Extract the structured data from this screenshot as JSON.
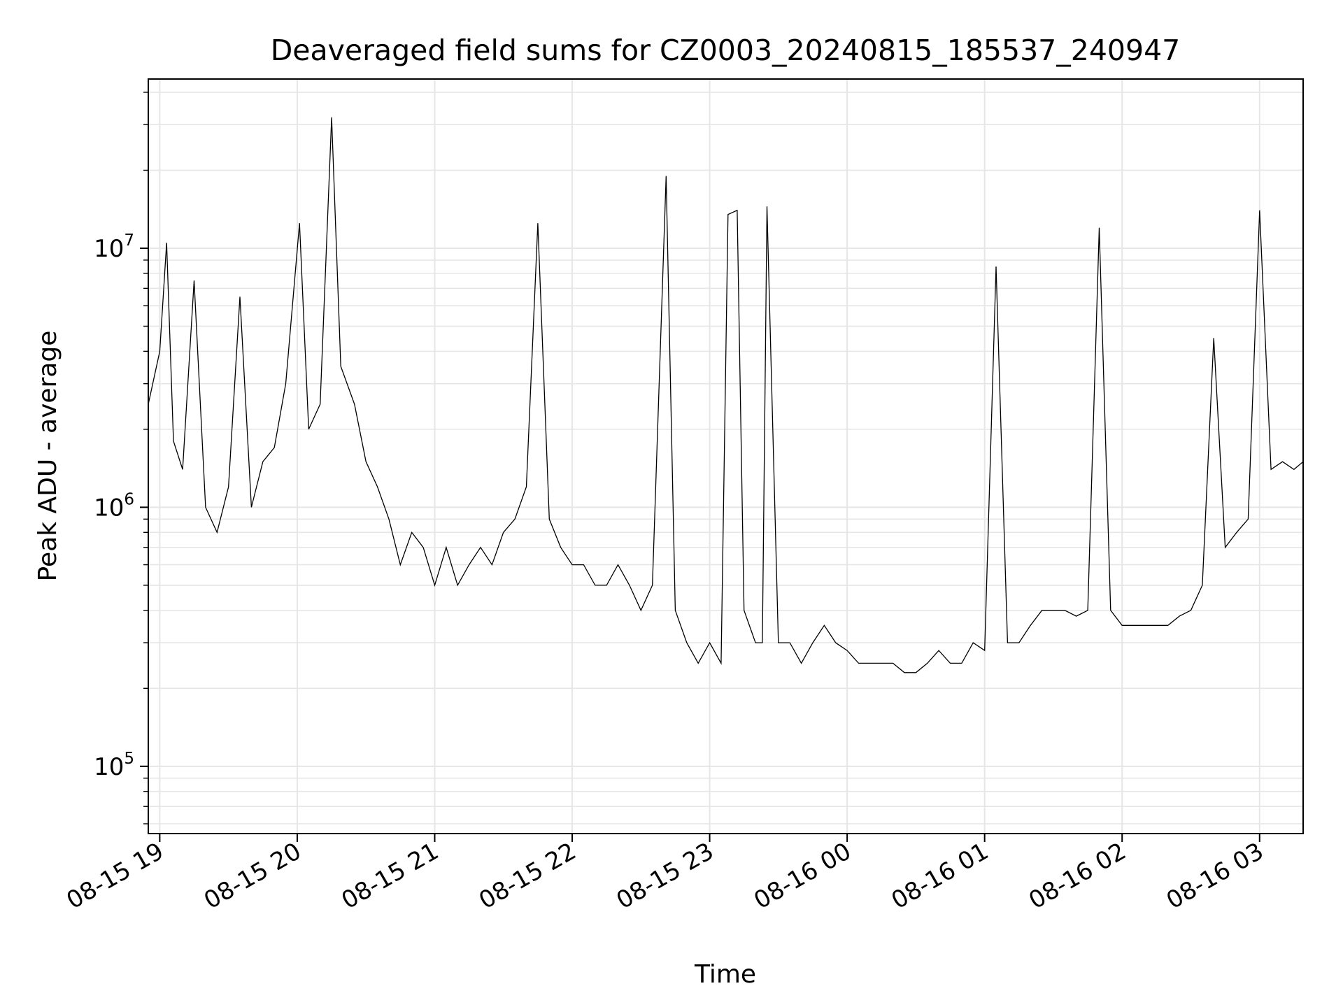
{
  "chart_data": {
    "type": "line",
    "title": "Deaveraged field sums for CZ0003_20240815_185537_240947",
    "xlabel": "Time",
    "ylabel": "Peak ADU - average",
    "y_scale": "log",
    "ylim": [
      55000,
      45000000
    ],
    "xlim": [
      "2024-08-15 18:55",
      "2024-08-16 03:19"
    ],
    "grid": true,
    "line_color": "#000000",
    "grid_color": "#e6e6e6",
    "x_ticks": [
      {
        "value": "2024-08-15 19:00",
        "label": "08-15 19"
      },
      {
        "value": "2024-08-15 20:00",
        "label": "08-15 20"
      },
      {
        "value": "2024-08-15 21:00",
        "label": "08-15 21"
      },
      {
        "value": "2024-08-15 22:00",
        "label": "08-15 22"
      },
      {
        "value": "2024-08-15 23:00",
        "label": "08-15 23"
      },
      {
        "value": "2024-08-16 00:00",
        "label": "08-16 00"
      },
      {
        "value": "2024-08-16 01:00",
        "label": "08-16 01"
      },
      {
        "value": "2024-08-16 02:00",
        "label": "08-16 02"
      },
      {
        "value": "2024-08-16 03:00",
        "label": "08-16 03"
      }
    ],
    "y_ticks": [
      {
        "value": 100000,
        "base": "10",
        "exp": "5"
      },
      {
        "value": 1000000,
        "base": "10",
        "exp": "6"
      },
      {
        "value": 10000000,
        "base": "10",
        "exp": "7"
      }
    ],
    "series": [
      {
        "x": [
          "2024-08-15 18:55",
          "2024-08-15 19:00",
          "2024-08-15 19:03",
          "2024-08-15 19:06",
          "2024-08-15 19:10",
          "2024-08-15 19:15",
          "2024-08-15 19:20",
          "2024-08-15 19:25",
          "2024-08-15 19:30",
          "2024-08-15 19:35",
          "2024-08-15 19:40",
          "2024-08-15 19:45",
          "2024-08-15 19:50",
          "2024-08-15 19:55",
          "2024-08-15 20:01",
          "2024-08-15 20:05",
          "2024-08-15 20:10",
          "2024-08-15 20:15",
          "2024-08-15 20:19",
          "2024-08-15 20:25",
          "2024-08-15 20:30",
          "2024-08-15 20:35",
          "2024-08-15 20:40",
          "2024-08-15 20:45",
          "2024-08-15 20:50",
          "2024-08-15 20:55",
          "2024-08-15 21:00",
          "2024-08-15 21:05",
          "2024-08-15 21:10",
          "2024-08-15 21:15",
          "2024-08-15 21:20",
          "2024-08-15 21:25",
          "2024-08-15 21:30",
          "2024-08-15 21:35",
          "2024-08-15 21:40",
          "2024-08-15 21:45",
          "2024-08-15 21:50",
          "2024-08-15 21:55",
          "2024-08-15 22:00",
          "2024-08-15 22:05",
          "2024-08-15 22:10",
          "2024-08-15 22:15",
          "2024-08-15 22:20",
          "2024-08-15 22:25",
          "2024-08-15 22:30",
          "2024-08-15 22:35",
          "2024-08-15 22:41",
          "2024-08-15 22:45",
          "2024-08-15 22:50",
          "2024-08-15 22:55",
          "2024-08-15 23:00",
          "2024-08-15 23:05",
          "2024-08-15 23:08",
          "2024-08-15 23:12",
          "2024-08-15 23:15",
          "2024-08-15 23:20",
          "2024-08-15 23:23",
          "2024-08-15 23:25",
          "2024-08-15 23:30",
          "2024-08-15 23:35",
          "2024-08-15 23:40",
          "2024-08-15 23:45",
          "2024-08-15 23:50",
          "2024-08-15 23:55",
          "2024-08-16 00:00",
          "2024-08-16 00:05",
          "2024-08-16 00:10",
          "2024-08-16 00:15",
          "2024-08-16 00:20",
          "2024-08-16 00:25",
          "2024-08-16 00:30",
          "2024-08-16 00:35",
          "2024-08-16 00:40",
          "2024-08-16 00:45",
          "2024-08-16 00:50",
          "2024-08-16 00:55",
          "2024-08-16 01:00",
          "2024-08-16 01:05",
          "2024-08-16 01:10",
          "2024-08-16 01:15",
          "2024-08-16 01:20",
          "2024-08-16 01:25",
          "2024-08-16 01:30",
          "2024-08-16 01:35",
          "2024-08-16 01:40",
          "2024-08-16 01:45",
          "2024-08-16 01:50",
          "2024-08-16 01:55",
          "2024-08-16 02:00",
          "2024-08-16 02:05",
          "2024-08-16 02:10",
          "2024-08-16 02:15",
          "2024-08-16 02:20",
          "2024-08-16 02:25",
          "2024-08-16 02:30",
          "2024-08-16 02:35",
          "2024-08-16 02:40",
          "2024-08-16 02:45",
          "2024-08-16 02:50",
          "2024-08-16 02:55",
          "2024-08-16 03:00",
          "2024-08-16 03:05",
          "2024-08-16 03:10",
          "2024-08-16 03:15",
          "2024-08-16 03:19"
        ],
        "y": [
          2500000,
          4000000,
          10500000,
          1800000,
          1400000,
          7500000,
          1000000,
          800000,
          1200000,
          6500000,
          1000000,
          1500000,
          1700000,
          3000000,
          12500000,
          2000000,
          2500000,
          32000000,
          3500000,
          2500000,
          1500000,
          1200000,
          900000,
          600000,
          800000,
          700000,
          500000,
          700000,
          500000,
          600000,
          700000,
          600000,
          800000,
          900000,
          1200000,
          12500000,
          900000,
          700000,
          600000,
          600000,
          500000,
          500000,
          600000,
          500000,
          400000,
          500000,
          19000000,
          400000,
          300000,
          250000,
          300000,
          250000,
          13500000,
          14000000,
          400000,
          300000,
          300000,
          14500000,
          300000,
          300000,
          250000,
          300000,
          350000,
          300000,
          280000,
          250000,
          250000,
          250000,
          250000,
          230000,
          230000,
          250000,
          280000,
          250000,
          250000,
          300000,
          280000,
          8500000,
          300000,
          300000,
          350000,
          400000,
          400000,
          400000,
          380000,
          400000,
          12000000,
          400000,
          350000,
          350000,
          350000,
          350000,
          350000,
          380000,
          400000,
          500000,
          4500000,
          700000,
          800000,
          900000,
          14000000,
          1400000,
          1500000,
          1400000,
          1500000
        ]
      }
    ]
  }
}
